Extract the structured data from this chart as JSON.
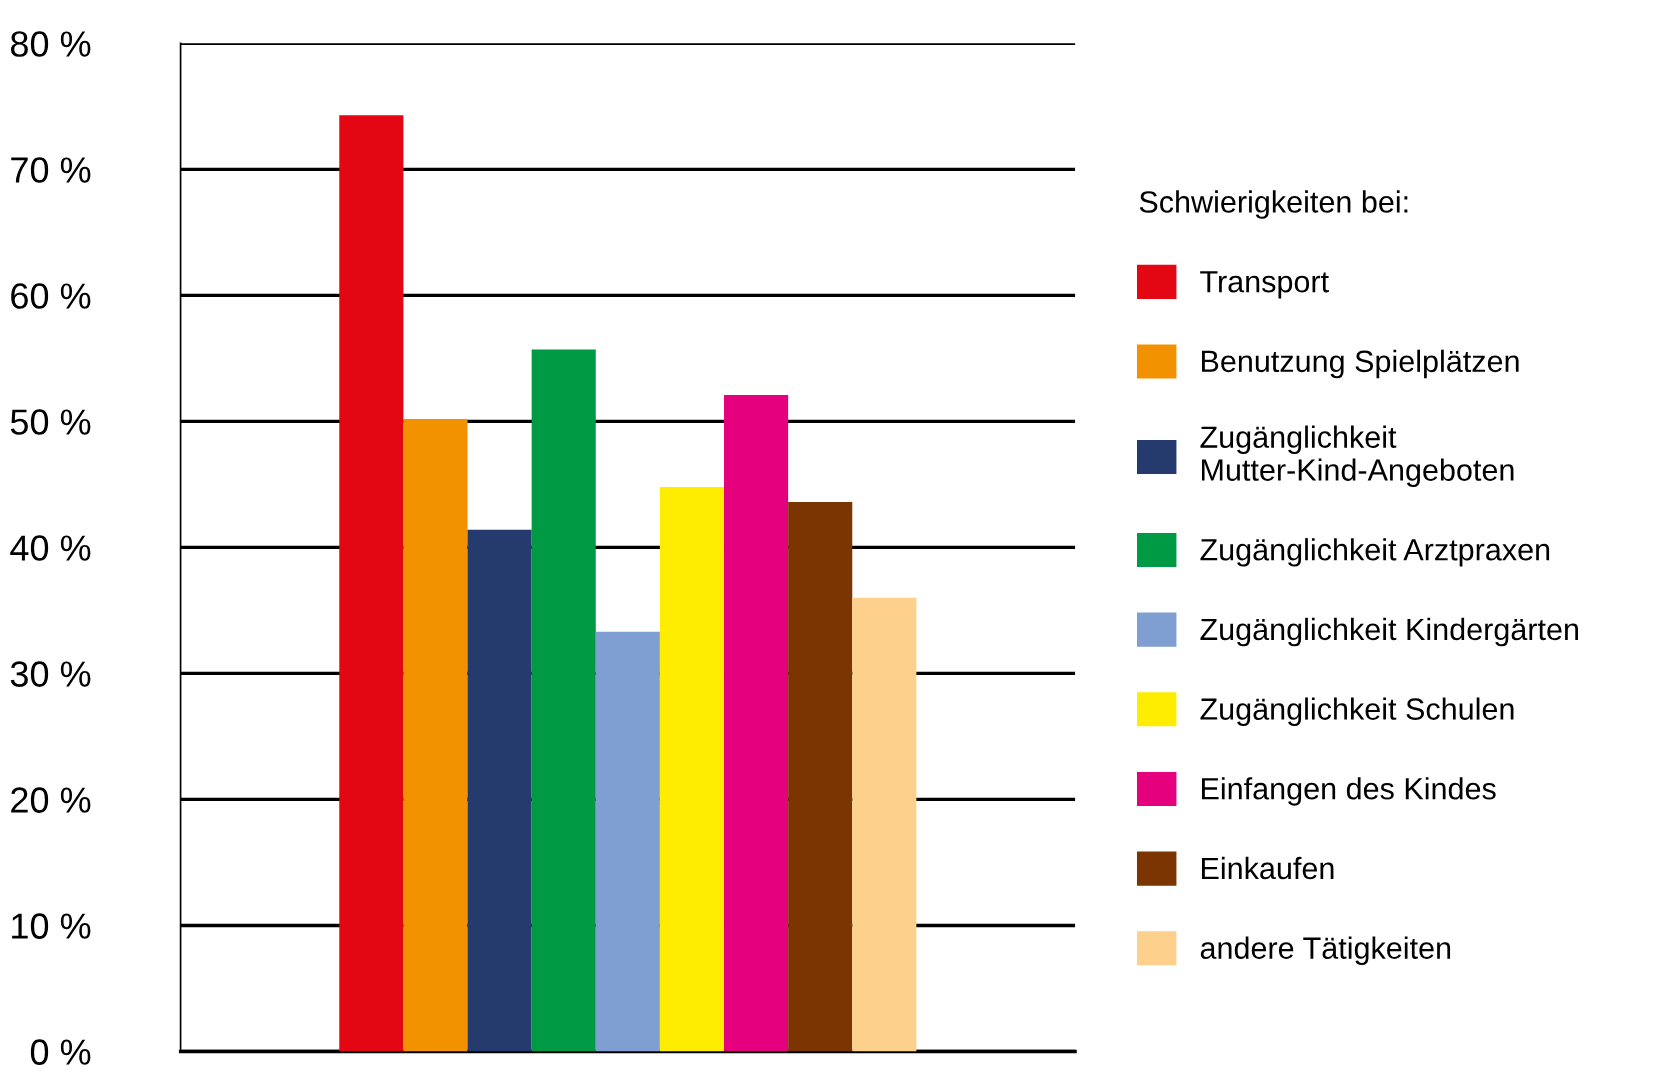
{
  "chart_data": {
    "type": "bar",
    "legend_title": "Schwierigkeiten bei:",
    "categories": [
      null
    ],
    "series": [
      {
        "name": "Transport",
        "color": "#e30613",
        "values": [
          74.3
        ]
      },
      {
        "name": "Benutzung Spielplätzen",
        "color": "#f39200",
        "values": [
          50.2
        ]
      },
      {
        "name": "Zugänglichkeit\nMutter-Kind-Angeboten",
        "color": "#253b6e",
        "values": [
          41.4
        ]
      },
      {
        "name": "Zugänglichkeit Arztpraxen",
        "color": "#009a44",
        "values": [
          55.7
        ]
      },
      {
        "name": "Zugänglichkeit Kindergärten",
        "color": "#7f9fd3",
        "values": [
          33.3
        ]
      },
      {
        "name": "Zugänglichkeit Schulen",
        "color": "#ffed00",
        "values": [
          44.8
        ]
      },
      {
        "name": "Einfangen des Kindes",
        "color": "#e5007d",
        "values": [
          52.1
        ]
      },
      {
        "name": "Einkaufen",
        "color": "#7a3500",
        "values": [
          43.6
        ]
      },
      {
        "name": "andere Tätigkeiten",
        "color": "#fdd08c",
        "values": [
          36.0
        ]
      }
    ],
    "ylim": [
      0,
      80
    ],
    "yticks": [
      {
        "value": 0,
        "label": "0 %"
      },
      {
        "value": 10,
        "label": "10 %"
      },
      {
        "value": 20,
        "label": "20 %"
      },
      {
        "value": 30,
        "label": "30 %"
      },
      {
        "value": 40,
        "label": "40 %"
      },
      {
        "value": 50,
        "label": "50 %"
      },
      {
        "value": 60,
        "label": "60 %"
      },
      {
        "value": 70,
        "label": "70 %"
      },
      {
        "value": 80,
        "label": "80 %"
      }
    ],
    "grid": "y",
    "legend": "right"
  }
}
